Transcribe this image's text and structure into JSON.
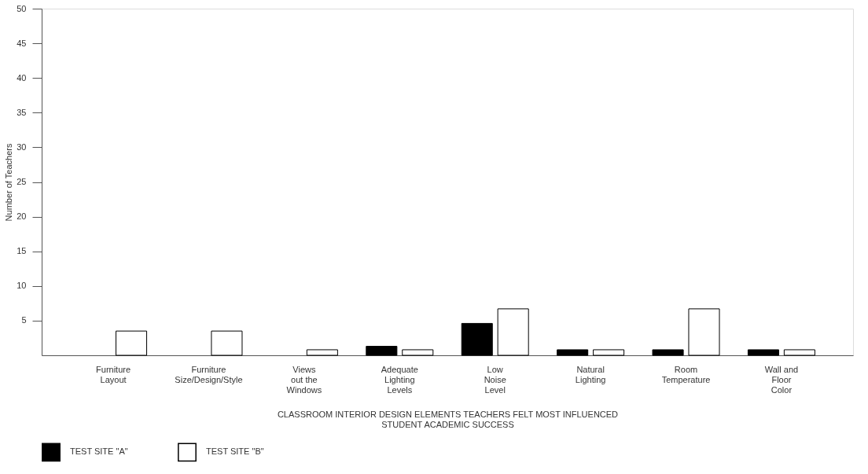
{
  "chart_data": {
    "type": "bar",
    "categories": [
      "Furniture\nLayout",
      "Furniture\nSize/Design/Style",
      "Views\nout the\nWindows",
      "Adequate\nLighting\nLevels",
      "Low\nNoise\nLevel",
      "Natural\nLighting",
      "Room\nTemperature",
      "Wall and\nFloor\nColor"
    ],
    "series": [
      {
        "name": "TEST SITE \"A\"",
        "color": "#000000",
        "values": [
          null,
          null,
          null,
          1.3,
          4.6,
          0.8,
          0.8,
          0.8
        ]
      },
      {
        "name": "TEST SITE \"B\"",
        "color": "#ffffff",
        "values": [
          3.5,
          3.5,
          0.8,
          0.8,
          6.7,
          0.8,
          6.7,
          0.8
        ]
      }
    ],
    "xlabel": "CLASSROOM INTERIOR DESIGN ELEMENTS TEACHERS FELT MOST INFLUENCED STUDENT ACADEMIC SUCCESS",
    "ylabel": "Number of Teachers",
    "ylim": [
      0,
      50
    ],
    "yticks": [
      5,
      10,
      15,
      20,
      25,
      30,
      35,
      40,
      45,
      50
    ],
    "grid": false,
    "legend": "bottom"
  }
}
